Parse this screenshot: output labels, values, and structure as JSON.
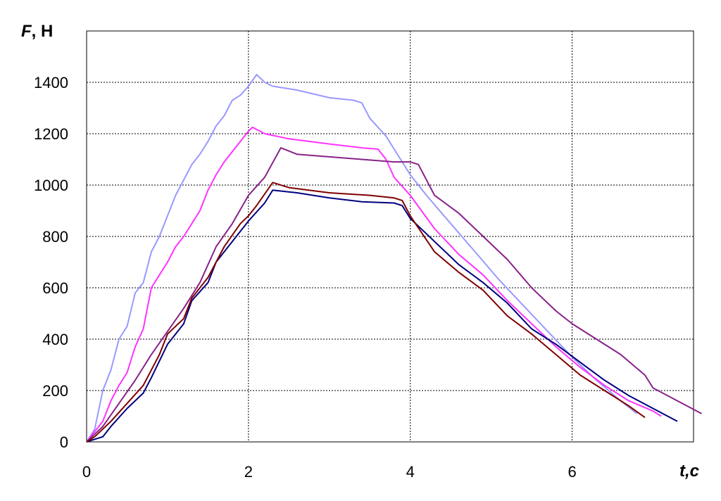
{
  "chart_data": {
    "type": "line",
    "title": "",
    "ylabel_symbol": "F",
    "ylabel_unit": ", Н",
    "xlabel": "t,c",
    "xlim": [
      0,
      7.5
    ],
    "ylim": [
      0,
      1600
    ],
    "x_ticks": [
      0,
      2,
      4,
      6
    ],
    "y_ticks": [
      0,
      200,
      400,
      600,
      800,
      1000,
      1200,
      1400
    ],
    "grid": "dashed",
    "legend": "none",
    "series": [
      {
        "color": "#9999ff",
        "points": [
          [
            0,
            0
          ],
          [
            0.1,
            50
          ],
          [
            0.2,
            200
          ],
          [
            0.3,
            280
          ],
          [
            0.4,
            400
          ],
          [
            0.5,
            450
          ],
          [
            0.6,
            580
          ],
          [
            0.7,
            620
          ],
          [
            0.8,
            740
          ],
          [
            0.9,
            800
          ],
          [
            1.0,
            880
          ],
          [
            1.1,
            960
          ],
          [
            1.2,
            1020
          ],
          [
            1.3,
            1080
          ],
          [
            1.4,
            1120
          ],
          [
            1.5,
            1170
          ],
          [
            1.6,
            1230
          ],
          [
            1.7,
            1270
          ],
          [
            1.8,
            1330
          ],
          [
            1.9,
            1350
          ],
          [
            2.0,
            1385
          ],
          [
            2.1,
            1430
          ],
          [
            2.2,
            1400
          ],
          [
            2.3,
            1385
          ],
          [
            2.6,
            1370
          ],
          [
            3.0,
            1340
          ],
          [
            3.3,
            1330
          ],
          [
            3.4,
            1320
          ],
          [
            3.5,
            1260
          ],
          [
            3.7,
            1190
          ],
          [
            4.0,
            1040
          ],
          [
            4.2,
            960
          ],
          [
            4.5,
            850
          ],
          [
            4.8,
            740
          ],
          [
            5.1,
            630
          ],
          [
            5.4,
            530
          ],
          [
            5.7,
            430
          ],
          [
            6.0,
            330
          ],
          [
            6.3,
            240
          ],
          [
            6.6,
            160
          ],
          [
            6.8,
            110
          ]
        ]
      },
      {
        "color": "#ff33ff",
        "points": [
          [
            0,
            0
          ],
          [
            0.1,
            40
          ],
          [
            0.2,
            80
          ],
          [
            0.3,
            160
          ],
          [
            0.4,
            220
          ],
          [
            0.5,
            270
          ],
          [
            0.6,
            370
          ],
          [
            0.7,
            440
          ],
          [
            0.8,
            600
          ],
          [
            0.9,
            650
          ],
          [
            1.0,
            700
          ],
          [
            1.1,
            760
          ],
          [
            1.2,
            800
          ],
          [
            1.3,
            850
          ],
          [
            1.4,
            900
          ],
          [
            1.5,
            980
          ],
          [
            1.6,
            1040
          ],
          [
            1.7,
            1090
          ],
          [
            1.8,
            1130
          ],
          [
            1.9,
            1170
          ],
          [
            2.0,
            1210
          ],
          [
            2.05,
            1225
          ],
          [
            2.2,
            1200
          ],
          [
            2.5,
            1180
          ],
          [
            3.0,
            1160
          ],
          [
            3.4,
            1145
          ],
          [
            3.6,
            1140
          ],
          [
            3.7,
            1100
          ],
          [
            3.8,
            1030
          ],
          [
            4.0,
            960
          ],
          [
            4.3,
            830
          ],
          [
            4.6,
            730
          ],
          [
            4.9,
            650
          ],
          [
            5.2,
            550
          ],
          [
            5.5,
            460
          ],
          [
            5.8,
            370
          ],
          [
            6.1,
            290
          ],
          [
            6.4,
            220
          ],
          [
            6.7,
            160
          ],
          [
            7.0,
            120
          ],
          [
            7.1,
            100
          ]
        ]
      },
      {
        "color": "#882288",
        "points": [
          [
            0,
            0
          ],
          [
            0.2,
            60
          ],
          [
            0.4,
            150
          ],
          [
            0.6,
            240
          ],
          [
            0.8,
            340
          ],
          [
            1.0,
            430
          ],
          [
            1.2,
            520
          ],
          [
            1.4,
            620
          ],
          [
            1.6,
            760
          ],
          [
            1.8,
            850
          ],
          [
            2.0,
            960
          ],
          [
            2.2,
            1030
          ],
          [
            2.4,
            1145
          ],
          [
            2.6,
            1120
          ],
          [
            3.0,
            1110
          ],
          [
            3.4,
            1100
          ],
          [
            3.8,
            1090
          ],
          [
            4.0,
            1090
          ],
          [
            4.1,
            1080
          ],
          [
            4.3,
            960
          ],
          [
            4.6,
            890
          ],
          [
            4.9,
            800
          ],
          [
            5.2,
            710
          ],
          [
            5.5,
            600
          ],
          [
            5.8,
            510
          ],
          [
            6.0,
            460
          ],
          [
            6.3,
            400
          ],
          [
            6.6,
            340
          ],
          [
            6.9,
            260
          ],
          [
            7.0,
            210
          ],
          [
            7.3,
            160
          ],
          [
            7.6,
            110
          ]
        ]
      },
      {
        "color": "#000080",
        "points": [
          [
            0,
            0
          ],
          [
            0.2,
            20
          ],
          [
            0.3,
            60
          ],
          [
            0.5,
            130
          ],
          [
            0.7,
            190
          ],
          [
            0.8,
            250
          ],
          [
            1.0,
            380
          ],
          [
            1.1,
            420
          ],
          [
            1.2,
            460
          ],
          [
            1.3,
            550
          ],
          [
            1.5,
            620
          ],
          [
            1.6,
            700
          ],
          [
            1.8,
            780
          ],
          [
            2.0,
            860
          ],
          [
            2.2,
            930
          ],
          [
            2.3,
            980
          ],
          [
            2.6,
            970
          ],
          [
            3.0,
            950
          ],
          [
            3.4,
            935
          ],
          [
            3.8,
            930
          ],
          [
            3.9,
            920
          ],
          [
            4.0,
            870
          ],
          [
            4.3,
            780
          ],
          [
            4.6,
            690
          ],
          [
            4.9,
            620
          ],
          [
            5.2,
            540
          ],
          [
            5.5,
            440
          ],
          [
            5.8,
            380
          ],
          [
            6.1,
            310
          ],
          [
            6.4,
            240
          ],
          [
            6.7,
            180
          ],
          [
            7.0,
            130
          ],
          [
            7.3,
            80
          ]
        ]
      },
      {
        "color": "#800000",
        "points": [
          [
            0,
            0
          ],
          [
            0.1,
            20
          ],
          [
            0.3,
            80
          ],
          [
            0.5,
            150
          ],
          [
            0.7,
            220
          ],
          [
            0.9,
            340
          ],
          [
            1.0,
            420
          ],
          [
            1.2,
            480
          ],
          [
            1.3,
            560
          ],
          [
            1.5,
            640
          ],
          [
            1.7,
            760
          ],
          [
            1.9,
            850
          ],
          [
            2.0,
            880
          ],
          [
            2.1,
            920
          ],
          [
            2.3,
            1010
          ],
          [
            2.5,
            990
          ],
          [
            3.0,
            970
          ],
          [
            3.5,
            960
          ],
          [
            3.8,
            950
          ],
          [
            3.9,
            940
          ],
          [
            4.0,
            880
          ],
          [
            4.3,
            740
          ],
          [
            4.6,
            660
          ],
          [
            4.9,
            590
          ],
          [
            5.2,
            490
          ],
          [
            5.5,
            420
          ],
          [
            5.8,
            340
          ],
          [
            6.1,
            260
          ],
          [
            6.4,
            200
          ],
          [
            6.7,
            140
          ],
          [
            6.9,
            95
          ]
        ]
      }
    ]
  }
}
